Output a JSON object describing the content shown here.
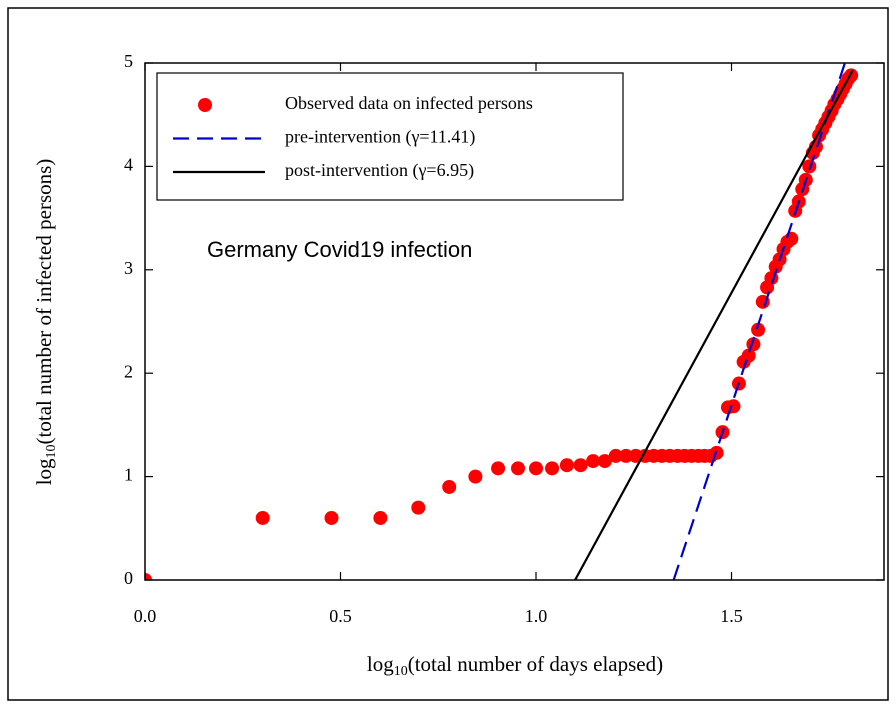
{
  "chart_data": {
    "type": "scatter",
    "annotation": "Germany Covid19 infection",
    "x_label": {
      "prefix": "log",
      "subscript": "10",
      "text": "(total number of days elapsed)"
    },
    "y_label": {
      "prefix": "log",
      "subscript": "10",
      "text": "(total number of infected persons)"
    },
    "xlim": [
      0,
      1.89
    ],
    "ylim": [
      0,
      5
    ],
    "xticks": [
      {
        "value": 0,
        "label": "0.0"
      },
      {
        "value": 0.5,
        "label": "0.5"
      },
      {
        "value": 1,
        "label": "1.0"
      },
      {
        "value": 1.5,
        "label": "1.5"
      }
    ],
    "yticks": [
      0,
      1,
      2,
      3,
      4,
      5
    ],
    "series": [
      {
        "name": "Observed data on infected persons",
        "color": "#ff0000",
        "style": "marker",
        "x": [
          0,
          0.301,
          0.477,
          0.602,
          0.699,
          0.778,
          0.845,
          0.903,
          0.954,
          1.0,
          1.041,
          1.079,
          1.114,
          1.146,
          1.176,
          1.204,
          1.23,
          1.255,
          1.279,
          1.301,
          1.322,
          1.342,
          1.362,
          1.38,
          1.398,
          1.415,
          1.431,
          1.447,
          1.462,
          1.477,
          1.491,
          1.505,
          1.519,
          1.531,
          1.544,
          1.556,
          1.568,
          1.58,
          1.591,
          1.602,
          1.613,
          1.623,
          1.633,
          1.643,
          1.653,
          1.663,
          1.672,
          1.681,
          1.69,
          1.699,
          1.708,
          1.716,
          1.724,
          1.732,
          1.74,
          1.748,
          1.756,
          1.763,
          1.771,
          1.778,
          1.785,
          1.792,
          1.799,
          1.806
        ],
        "values": [
          0,
          0.6,
          0.6,
          0.6,
          0.7,
          0.9,
          1.0,
          1.08,
          1.08,
          1.08,
          1.08,
          1.11,
          1.11,
          1.15,
          1.15,
          1.2,
          1.2,
          1.2,
          1.2,
          1.2,
          1.2,
          1.2,
          1.2,
          1.2,
          1.2,
          1.2,
          1.2,
          1.2,
          1.23,
          1.43,
          1.67,
          1.68,
          1.9,
          2.11,
          2.17,
          2.28,
          2.42,
          2.69,
          2.83,
          2.92,
          3.03,
          3.1,
          3.2,
          3.27,
          3.3,
          3.57,
          3.66,
          3.78,
          3.87,
          4.0,
          4.13,
          4.19,
          4.3,
          4.36,
          4.42,
          4.48,
          4.54,
          4.6,
          4.65,
          4.7,
          4.75,
          4.8,
          4.85,
          4.88
        ]
      },
      {
        "name": "pre-intervention (γ=11.41)",
        "color": "#0000cc",
        "style": "dashed",
        "x": [
          1.352,
          1.79
        ],
        "values": [
          0,
          5
        ]
      },
      {
        "name": "post-intervention (γ=6.95)",
        "color": "#000000",
        "style": "solid",
        "x": [
          1.1,
          1.81
        ],
        "values": [
          0,
          4.93
        ]
      }
    ]
  }
}
